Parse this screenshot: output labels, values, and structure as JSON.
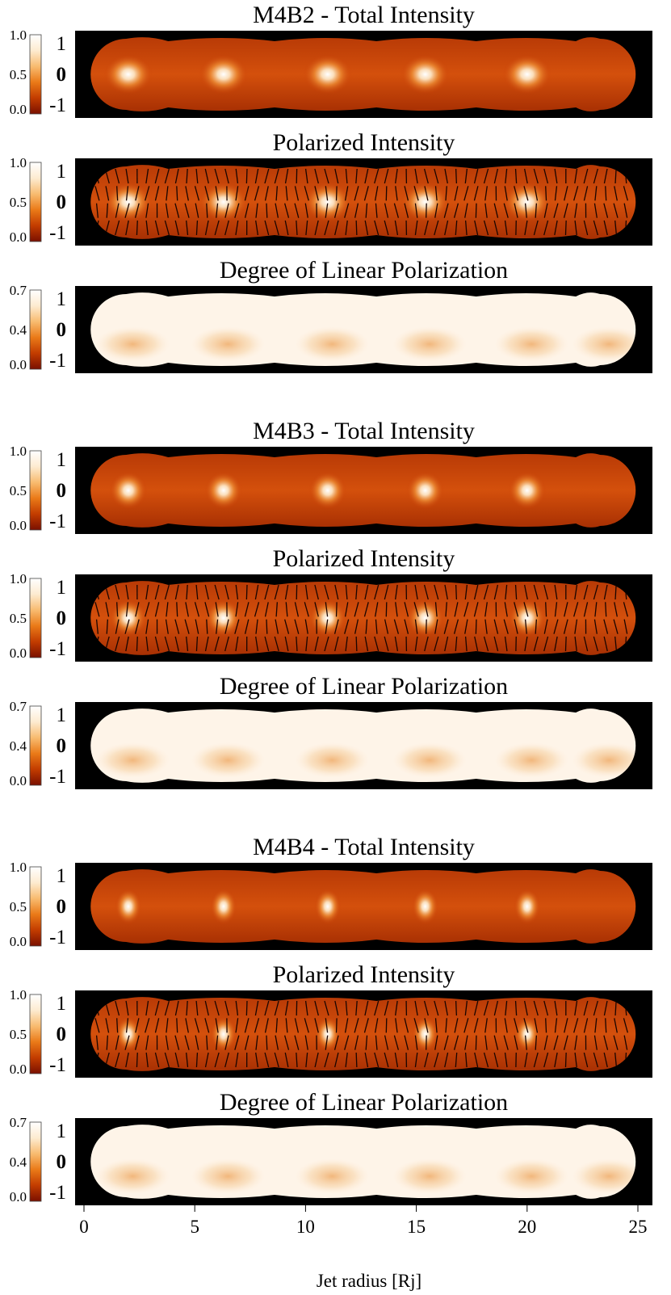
{
  "chart_data": {
    "type": "heatmap",
    "xlabel": "Jet radius [Rj]",
    "xlim": [
      0,
      25
    ],
    "xticks": [
      0,
      5,
      10,
      15,
      20,
      25
    ],
    "ylim": [
      -1,
      1
    ],
    "yticks": [
      "1",
      "0",
      "-1"
    ],
    "knot_positions": [
      2,
      6.3,
      11,
      15.4,
      20
    ],
    "colormap": [
      "#7a1000",
      "#c23c00",
      "#ea7a18",
      "#f8bb70",
      "#fdebd0",
      "#ffffff"
    ],
    "panels": [
      {
        "model": "M4B2",
        "title": "M4B2 - Total Intensity",
        "kind": "total",
        "colorbar_ticks": [
          "1.0",
          "0.5",
          "0.0"
        ],
        "peak": 0.95,
        "knot_width": 1.1
      },
      {
        "model": "M4B2",
        "title": "Polarized Intensity",
        "kind": "polarized",
        "colorbar_ticks": [
          "1.0",
          "0.5",
          "0.0"
        ],
        "peak": 0.95,
        "knot_width": 1.1
      },
      {
        "model": "M4B2",
        "title": "Degree of Linear Polarization",
        "kind": "degree",
        "colorbar_ticks": [
          "0.7",
          "0.4",
          "0.0"
        ]
      },
      {
        "model": "M4B3",
        "title": "M4B3 - Total Intensity",
        "kind": "total",
        "colorbar_ticks": [
          "1.0",
          "0.5",
          "0.0"
        ],
        "peak": 0.9,
        "knot_width": 0.85
      },
      {
        "model": "M4B3",
        "title": "Polarized Intensity",
        "kind": "polarized",
        "colorbar_ticks": [
          "1.0",
          "0.5",
          "0.0"
        ],
        "peak": 0.9,
        "knot_width": 0.85
      },
      {
        "model": "M4B3",
        "title": "Degree of Linear Polarization",
        "kind": "degree",
        "colorbar_ticks": [
          "0.7",
          "0.4",
          "0.0"
        ]
      },
      {
        "model": "M4B4",
        "title": "M4B4 - Total Intensity",
        "kind": "total",
        "colorbar_ticks": [
          "1.0",
          "0.5",
          "0.0"
        ],
        "peak": 0.85,
        "knot_width": 0.6
      },
      {
        "model": "M4B4",
        "title": "Polarized Intensity",
        "kind": "polarized",
        "colorbar_ticks": [
          "1.0",
          "0.5",
          "0.0"
        ],
        "peak": 0.85,
        "knot_width": 0.6
      },
      {
        "model": "M4B4",
        "title": "Degree of Linear Polarization",
        "kind": "degree",
        "colorbar_ticks": [
          "0.7",
          "0.4",
          "0.0"
        ]
      }
    ]
  }
}
